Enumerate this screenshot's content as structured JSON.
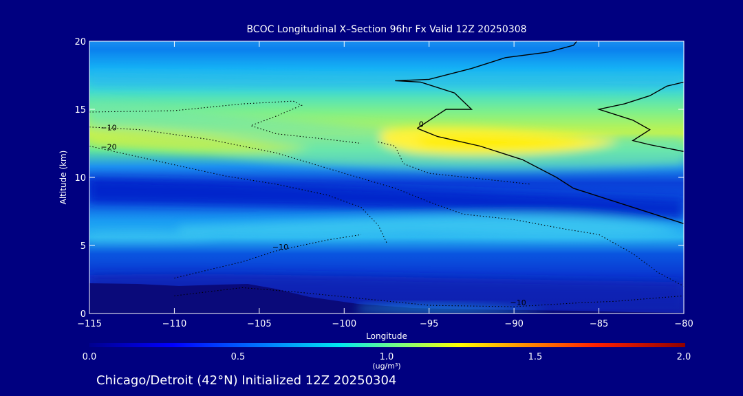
{
  "chart_data": {
    "type": "heatmap",
    "title": "BCOC Longitudinal X–Section 96hr  Fx Valid 12Z 20250308",
    "xlabel": "Longitude",
    "ylabel": "Altitude (km)",
    "xlim": [
      -115,
      -80
    ],
    "ylim": [
      0,
      20
    ],
    "x_ticks": [
      -115,
      -110,
      -105,
      -100,
      -95,
      -90,
      -85,
      -80
    ],
    "x_tick_labels": [
      "−115",
      "−110",
      "−105",
      "−100",
      "−95",
      "−90",
      "−85",
      "−80"
    ],
    "y_ticks": [
      0,
      5,
      10,
      15,
      20
    ],
    "colorbar": {
      "min": 0.0,
      "max": 2.0,
      "tick_labels": [
        "0.0",
        "0.5",
        "1.0",
        "1.5",
        "2.0"
      ],
      "units": "(ug/m³)"
    },
    "temperature_contours": [
      {
        "label": "0",
        "style": "solid",
        "points": [
          [
            -95.7,
            13.6
          ],
          [
            -94.5,
            13.0
          ],
          [
            -92,
            12.3
          ],
          [
            -89.5,
            11.3
          ],
          [
            -87.5,
            10.0
          ],
          [
            -86.5,
            9.2
          ],
          [
            -83,
            7.8
          ],
          [
            -80,
            6.6
          ]
        ]
      },
      {
        "label": "0",
        "style": "solid",
        "points": [
          [
            -95.7,
            13.6
          ],
          [
            -94,
            15.0
          ],
          [
            -92.5,
            15.0
          ],
          [
            -93.5,
            16.2
          ],
          [
            -95.5,
            17.0
          ],
          [
            -97,
            17.1
          ],
          [
            -95,
            17.2
          ],
          [
            -92.5,
            18.0
          ],
          [
            -90.5,
            18.8
          ],
          [
            -88,
            19.2
          ],
          [
            -86.5,
            19.7
          ],
          [
            -86.3,
            20
          ]
        ]
      },
      {
        "label": "0",
        "style": "solid",
        "points": [
          [
            -80,
            17.0
          ],
          [
            -81,
            16.7
          ],
          [
            -82,
            16.0
          ],
          [
            -83.5,
            15.4
          ],
          [
            -85,
            15.0
          ],
          [
            -83,
            14.2
          ],
          [
            -82,
            13.5
          ],
          [
            -83,
            12.7
          ],
          [
            -82,
            12.4
          ],
          [
            -80,
            11.9
          ]
        ]
      },
      {
        "label": "−10",
        "style": "dotted",
        "points": [
          [
            -115,
            13.7
          ],
          [
            -112,
            13.5
          ],
          [
            -108,
            12.8
          ],
          [
            -104,
            11.8
          ],
          [
            -100,
            10.3
          ],
          [
            -97,
            9.2
          ],
          [
            -95,
            8.2
          ],
          [
            -93,
            7.3
          ],
          [
            -90,
            6.9
          ],
          [
            -87,
            6.2
          ],
          [
            -85,
            5.8
          ],
          [
            -83,
            4.4
          ],
          [
            -81.5,
            3.0
          ],
          [
            -80,
            2.0
          ]
        ]
      },
      {
        "label": "−20",
        "style": "dotted",
        "points": [
          [
            -115,
            12.3
          ],
          [
            -111,
            11.2
          ],
          [
            -107,
            10.1
          ],
          [
            -104,
            9.5
          ],
          [
            -101,
            8.7
          ],
          [
            -99,
            7.8
          ],
          [
            -98,
            6.5
          ],
          [
            -97.5,
            5.2
          ]
        ]
      },
      {
        "label": "",
        "style": "dotted",
        "points": [
          [
            -115,
            14.8
          ],
          [
            -110,
            14.9
          ],
          [
            -106,
            15.4
          ],
          [
            -103,
            15.6
          ],
          [
            -102.5,
            15.3
          ],
          [
            -104,
            14.5
          ],
          [
            -105.5,
            13.8
          ],
          [
            -104,
            13.2
          ],
          [
            -101,
            12.8
          ],
          [
            -99,
            12.5
          ]
        ]
      },
      {
        "label": "",
        "style": "dotted",
        "points": [
          [
            -98,
            12.6
          ],
          [
            -97,
            12.3
          ],
          [
            -96.5,
            11.0
          ],
          [
            -95,
            10.3
          ],
          [
            -92,
            9.9
          ],
          [
            -89,
            9.5
          ]
        ]
      },
      {
        "label": "−10",
        "style": "dotted",
        "points": [
          [
            -110,
            1.3
          ],
          [
            -106,
            1.9
          ],
          [
            -103,
            1.6
          ],
          [
            -99,
            1.1
          ],
          [
            -95,
            0.6
          ],
          [
            -90,
            0.5
          ],
          [
            -86,
            0.8
          ],
          [
            -84,
            0.9
          ],
          [
            -82,
            1.1
          ],
          [
            -80,
            1.3
          ]
        ]
      },
      {
        "label": "−10",
        "style": "dotted",
        "points": [
          [
            -110,
            2.6
          ],
          [
            -106,
            3.8
          ],
          [
            -104,
            4.6
          ],
          [
            -101,
            5.4
          ],
          [
            -99,
            5.8
          ]
        ]
      }
    ],
    "footer": "Chicago/Detroit (42°N) Initialized 12Z 20250304"
  }
}
